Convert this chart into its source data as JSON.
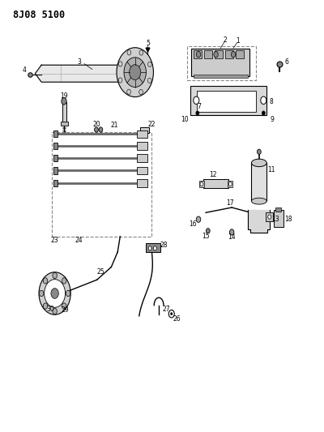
{
  "title": "8J08 5100",
  "bg_color": "#ffffff",
  "line_color": "#000000",
  "dash_color": "#888888",
  "fig_width": 4.0,
  "fig_height": 5.33,
  "dpi": 100
}
